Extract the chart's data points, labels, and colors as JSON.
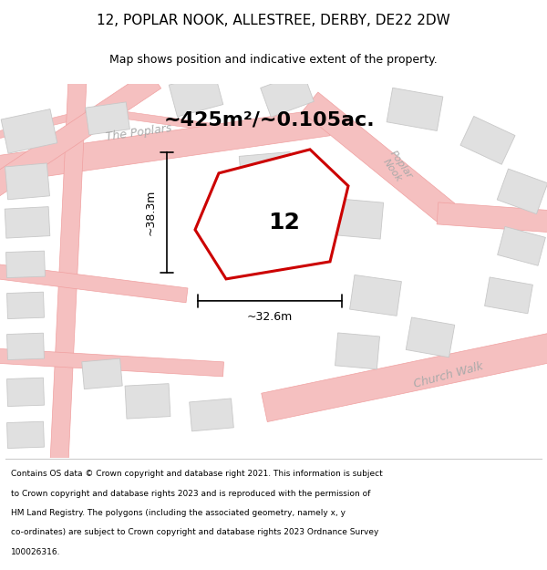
{
  "title_line1": "12, POPLAR NOOK, ALLESTREE, DERBY, DE22 2DW",
  "title_line2": "Map shows position and indicative extent of the property.",
  "area_text": "~425m²/~0.105ac.",
  "property_number": "12",
  "dim_vertical": "~38.3m",
  "dim_horizontal": "~32.6m",
  "footer_lines": [
    "Contains OS data © Crown copyright and database right 2021. This information is subject",
    "to Crown copyright and database rights 2023 and is reproduced with the permission of",
    "HM Land Registry. The polygons (including the associated geometry, namely x, y",
    "co-ordinates) are subject to Crown copyright and database rights 2023 Ordnance Survey",
    "100026316."
  ],
  "background_color": "#ffffff",
  "road_color": "#f5c0c0",
  "road_stroke": "#f0a0a0",
  "building_color": "#e0e0e0",
  "building_stroke": "#c8c8c8",
  "property_fill": "#ffffff",
  "property_stroke": "#cc0000",
  "dim_line_color": "#000000",
  "title_color": "#000000",
  "footer_color": "#000000",
  "text_color": "#000000",
  "road_label_color": "#aaaaaa"
}
